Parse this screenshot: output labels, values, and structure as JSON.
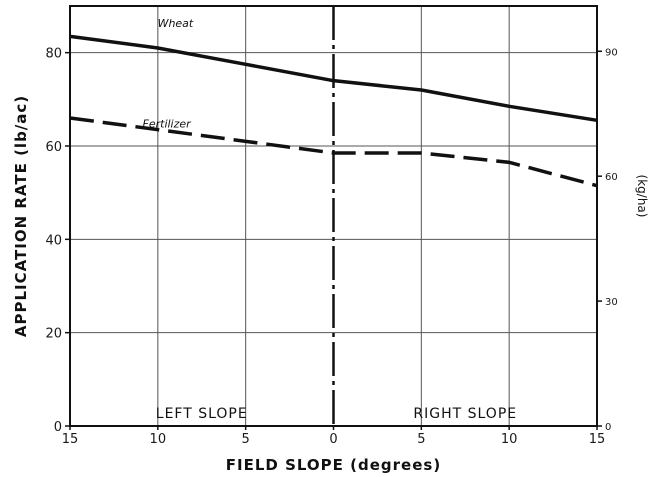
{
  "chart_data": {
    "type": "line",
    "xlabel": "FIELD SLOPE (degrees)",
    "ylabel": "APPLICATION RATE (lb/ac)",
    "y2label": "(kg/ha)",
    "x": [
      -15,
      -10,
      -5,
      0,
      5,
      10,
      15
    ],
    "x_tick_labels": [
      "15",
      "10",
      "5",
      "0",
      "5",
      "10",
      "15"
    ],
    "xlim": [
      -15,
      15
    ],
    "ylim": [
      0,
      90
    ],
    "y_ticks": [
      0,
      20,
      40,
      60,
      80
    ],
    "y2_ticks": [
      0,
      30,
      60,
      90
    ],
    "grid": true,
    "regions": [
      {
        "label": "LEFT SLOPE",
        "x": -7.5
      },
      {
        "label": "RIGHT SLOPE",
        "x": 7.5
      }
    ],
    "series": [
      {
        "name": "Wheat",
        "style": "solid",
        "values": [
          83.5,
          81,
          77.5,
          74,
          72,
          68.5,
          65.5
        ],
        "label_at": [
          -9,
          85.5
        ]
      },
      {
        "name": "Fertilizer",
        "style": "dashed",
        "values": [
          66,
          63.5,
          61,
          58.5,
          58.5,
          56.5,
          51.5
        ],
        "label_at": [
          -9.5,
          64
        ]
      }
    ]
  }
}
